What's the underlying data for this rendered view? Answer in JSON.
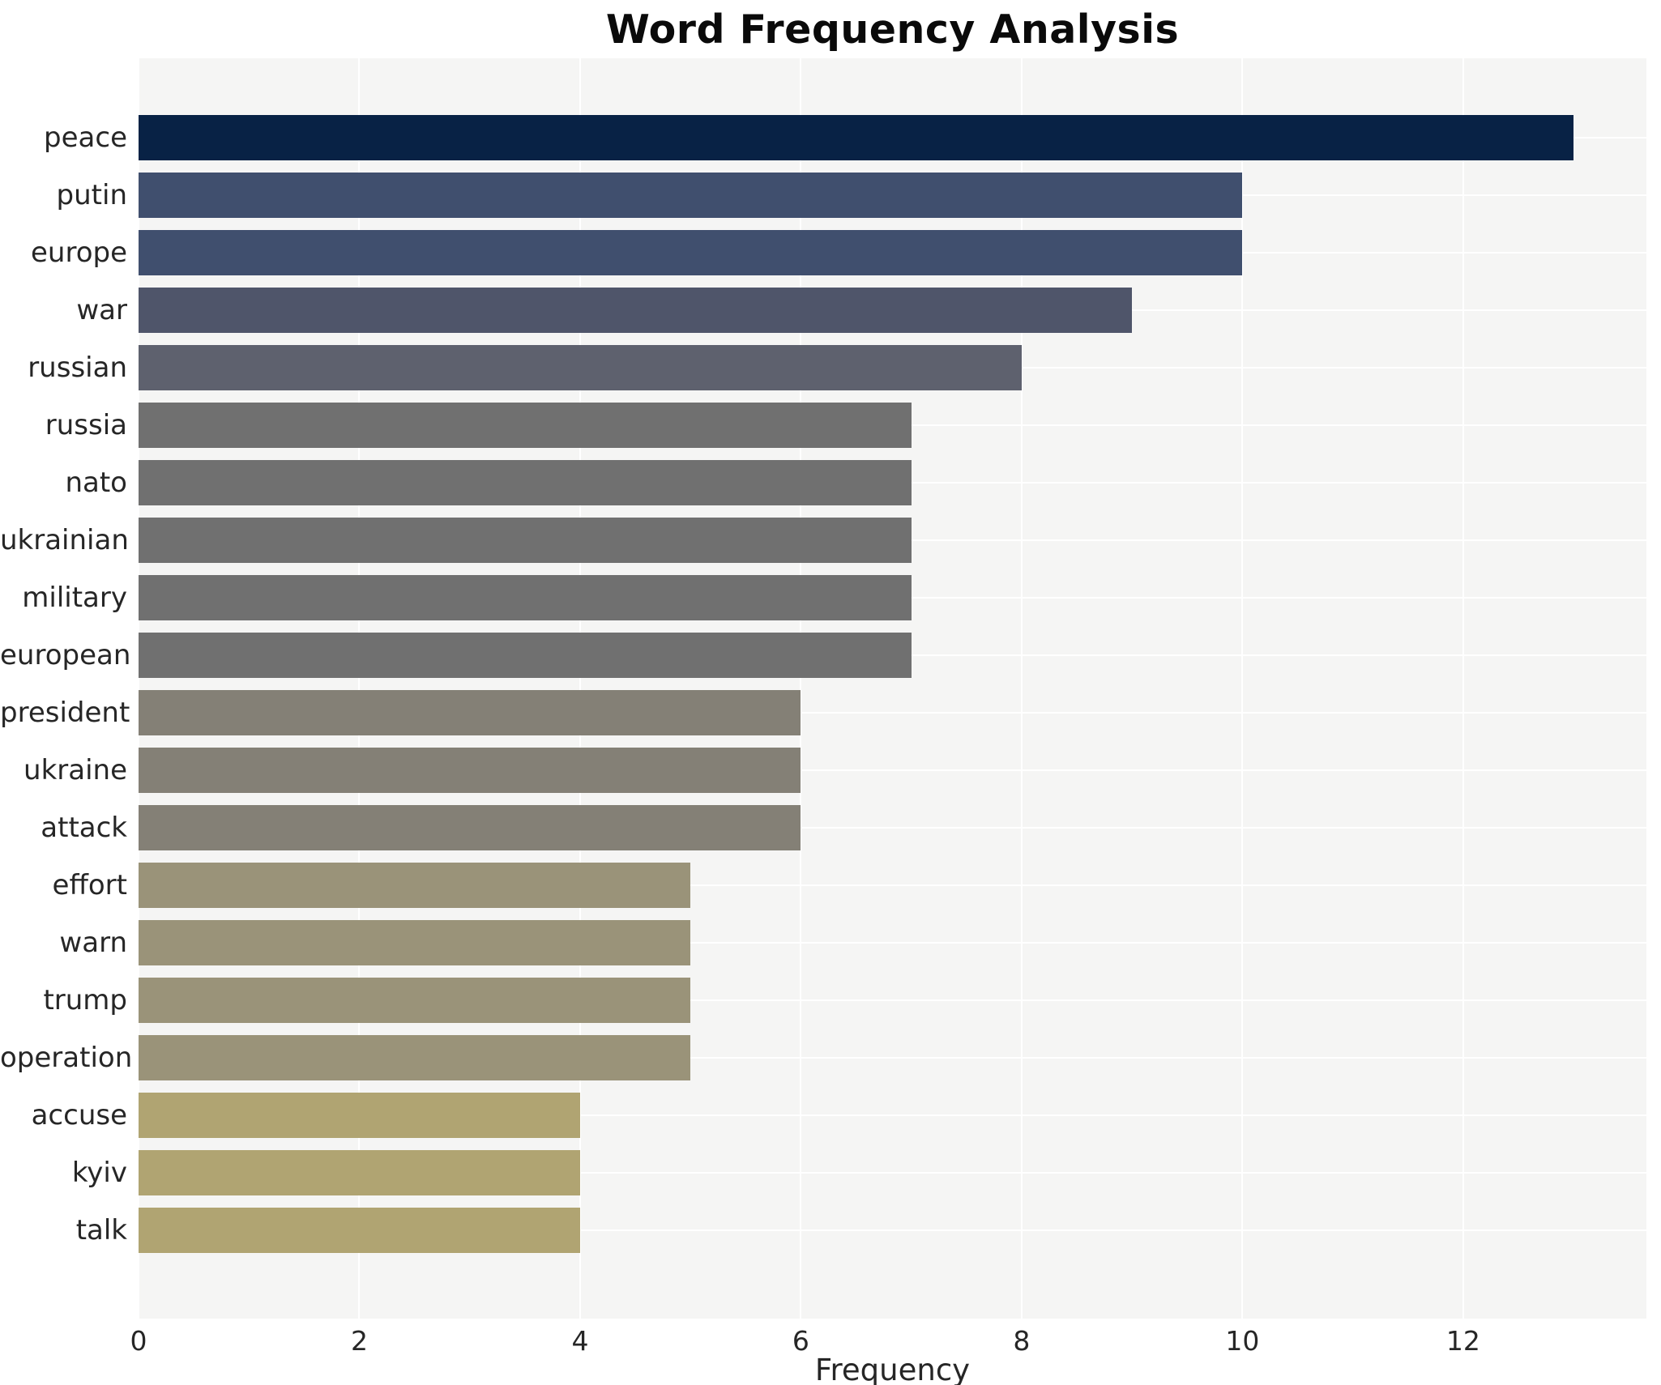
{
  "chart_data": {
    "type": "bar",
    "orientation": "horizontal",
    "title": "Word Frequency Analysis",
    "xlabel": "Frequency",
    "ylabel": "",
    "xlim": [
      0,
      13.66
    ],
    "x_ticks": [
      0,
      2,
      4,
      6,
      8,
      10,
      12
    ],
    "grid": true,
    "legend": "none",
    "plot_background": "#f5f5f4",
    "grid_color": "#ffffff",
    "title_color": "#0a0a0a",
    "axis_text_color": "#262626",
    "categories": [
      "peace",
      "putin",
      "europe",
      "war",
      "russian",
      "russia",
      "nato",
      "ukrainian",
      "military",
      "european",
      "president",
      "ukraine",
      "attack",
      "effort",
      "warn",
      "trump",
      "operation",
      "accuse",
      "kyiv",
      "talk"
    ],
    "values": [
      13,
      10,
      10,
      9,
      8,
      7,
      7,
      7,
      7,
      7,
      6,
      6,
      6,
      5,
      5,
      5,
      5,
      4,
      4,
      4
    ],
    "bar_colors": [
      "#082245",
      "#404f6e",
      "#404f6e",
      "#4f556a",
      "#5e616e",
      "#707070",
      "#707070",
      "#707070",
      "#707070",
      "#707070",
      "#848076",
      "#848076",
      "#848076",
      "#9a9379",
      "#9a9379",
      "#9a9379",
      "#9a9379",
      "#b0a472",
      "#b0a472",
      "#b0a472"
    ],
    "colormap": "cividis (reversed, dark = high frequency)"
  }
}
